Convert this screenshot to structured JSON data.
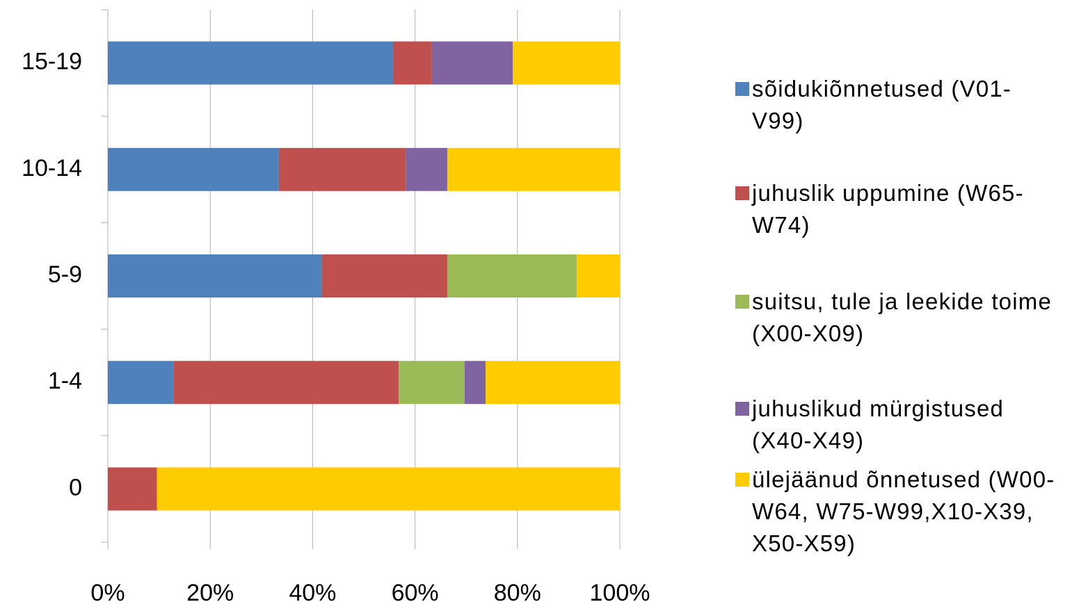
{
  "chart_data": {
    "type": "stacked-bar-horizontal",
    "categories": [
      "15-19",
      "10-14",
      "5-9",
      "1-4",
      "0"
    ],
    "series": [
      {
        "name": "sõidukiõnnetused (V01-V99)",
        "color": "#4f81bd",
        "values": [
          55.7,
          33.4,
          41.8,
          12.8,
          0
        ]
      },
      {
        "name": "juhuslik uppumine (W65-W74)",
        "color": "#c0504d",
        "values": [
          7.6,
          24.8,
          24.5,
          44.0,
          9.6
        ]
      },
      {
        "name": "suitsu, tule ja leekide toime (X00-X09)",
        "color": "#9bbb59",
        "values": [
          0,
          0,
          25.3,
          12.9,
          0
        ]
      },
      {
        "name": "juhuslikud mürgistused (X40-X49)",
        "color": "#8064a2",
        "values": [
          15.8,
          8.1,
          0,
          4.1,
          0
        ]
      },
      {
        "name": "ülejäänud õnnetused (W00-W64, W75-W99,X10-X39, X50-X59)",
        "color": "#ffcc00",
        "values": [
          20.9,
          33.7,
          8.4,
          26.2,
          90.4
        ]
      }
    ],
    "xlim": [
      0,
      100
    ],
    "xticks": [
      {
        "value": 0,
        "label": "0%"
      },
      {
        "value": 20,
        "label": "20%"
      },
      {
        "value": 40,
        "label": "40%"
      },
      {
        "value": 60,
        "label": "60%"
      },
      {
        "value": 80,
        "label": "80%"
      },
      {
        "value": 100,
        "label": "100%"
      }
    ],
    "grid": true,
    "legend": "right"
  }
}
